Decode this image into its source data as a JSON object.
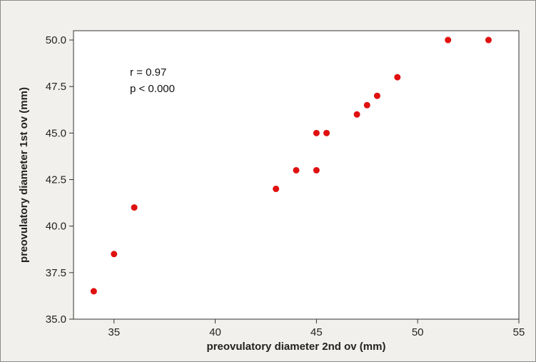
{
  "chart_data": {
    "type": "scatter",
    "title": "",
    "xlabel": "preovulatory diameter 2nd ov (mm)",
    "ylabel": "preovulatory diameter 1st ov (mm)",
    "xlim": [
      33,
      55
    ],
    "ylim": [
      35,
      50.5
    ],
    "x_ticks": [
      35,
      40,
      45,
      50,
      55
    ],
    "y_ticks": [
      35.0,
      37.5,
      40.0,
      42.5,
      45.0,
      47.5,
      50.0
    ],
    "x_tick_labels": [
      "35",
      "40",
      "45",
      "50",
      "55"
    ],
    "y_tick_labels": [
      "35.0",
      "37.5",
      "40.0",
      "42.5",
      "45.0",
      "47.5",
      "50.0"
    ],
    "grid": false,
    "point_color": "#e01010",
    "annotations": [
      "r = 0.97",
      "p < 0.000"
    ],
    "series": [
      {
        "points": [
          [
            34,
            36.5
          ],
          [
            35,
            38.5
          ],
          [
            36,
            41
          ],
          [
            43,
            42
          ],
          [
            44,
            43
          ],
          [
            45,
            43
          ],
          [
            45,
            45
          ],
          [
            45.5,
            45
          ],
          [
            47,
            46
          ],
          [
            47.5,
            46.5
          ],
          [
            48,
            47
          ],
          [
            49,
            48
          ],
          [
            51.5,
            50
          ],
          [
            53.5,
            50
          ]
        ]
      }
    ]
  }
}
